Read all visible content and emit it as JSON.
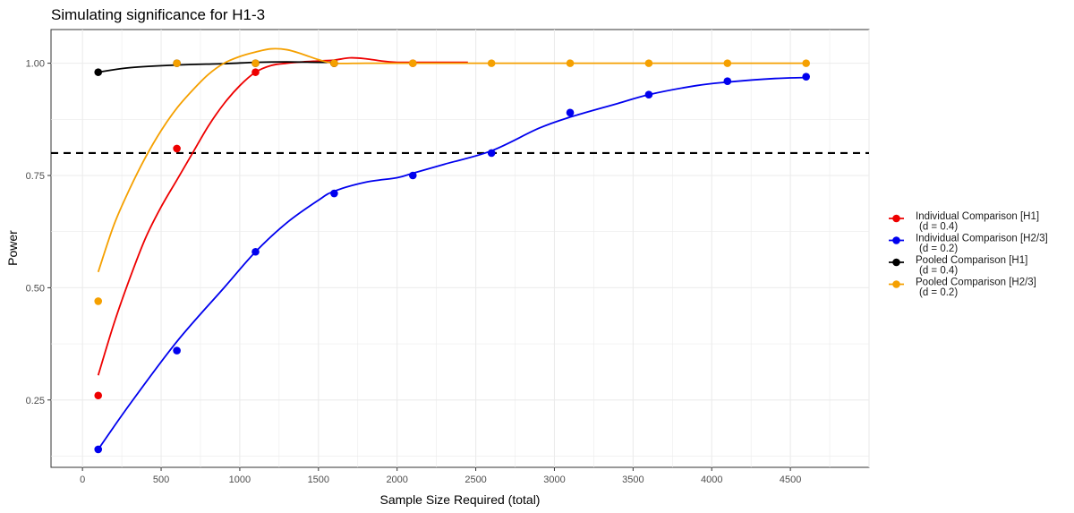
{
  "chart_data": {
    "type": "line",
    "title": "Simulating significance for H1-3",
    "xlabel": "Sample Size Required (total)",
    "ylabel": "Power",
    "xlim": [
      -200,
      5000
    ],
    "ylim": [
      0.1,
      1.075
    ],
    "x_ticks": [
      0,
      500,
      1000,
      1500,
      2000,
      2500,
      3000,
      3500,
      4000,
      4500
    ],
    "y_ticks": [
      0.25,
      0.5,
      0.75,
      1.0
    ],
    "y_tick_labels": [
      "0.25",
      "0.50",
      "0.75",
      "1.00"
    ],
    "grid": true,
    "legend_position": "right",
    "reference_line": {
      "y": 0.8,
      "style": "dashed",
      "color": "#000000"
    },
    "x": [
      100,
      600,
      1100,
      1600,
      2100,
      2600,
      3100,
      3600,
      4100,
      4600
    ],
    "series": [
      {
        "name": "Individual Comparison [H1]\n(d = 0.4)",
        "color": "#ee0000",
        "values": [
          0.26,
          0.81,
          0.98,
          1.0,
          1.0,
          null,
          null,
          null,
          null,
          null
        ],
        "smooth_x": [
          100,
          200,
          300,
          400,
          500,
          600,
          700,
          800,
          900,
          1000,
          1100,
          1200,
          1300,
          1400,
          1500,
          1600,
          1700,
          1800,
          1900,
          2000,
          2100,
          2200,
          2300,
          2400,
          2450
        ],
        "smooth_y": [
          0.305,
          0.42,
          0.52,
          0.61,
          0.68,
          0.74,
          0.8,
          0.86,
          0.91,
          0.95,
          0.98,
          0.995,
          1.0,
          1.003,
          1.005,
          1.007,
          1.012,
          1.01,
          1.005,
          1.002,
          1.002,
          1.002,
          1.002,
          1.002,
          1.002
        ]
      },
      {
        "name": "Individual Comparison [H2/3]\n(d = 0.2)",
        "color": "#0000ee",
        "values": [
          0.14,
          0.36,
          0.58,
          0.71,
          0.75,
          0.8,
          0.89,
          0.93,
          0.96,
          0.97
        ],
        "smooth_x": [
          100,
          300,
          600,
          900,
          1100,
          1300,
          1500,
          1600,
          1800,
          2000,
          2100,
          2300,
          2600,
          2900,
          3100,
          3400,
          3600,
          3900,
          4100,
          4400,
          4600
        ],
        "smooth_y": [
          0.14,
          0.24,
          0.38,
          0.5,
          0.58,
          0.645,
          0.695,
          0.715,
          0.735,
          0.745,
          0.755,
          0.775,
          0.805,
          0.855,
          0.88,
          0.91,
          0.93,
          0.95,
          0.958,
          0.966,
          0.968
        ]
      },
      {
        "name": "Pooled Comparison [H1]\n(d = 0.4)",
        "color": "#000000",
        "values": [
          0.98,
          1.0,
          1.0,
          1.0,
          null,
          null,
          null,
          null,
          null,
          null
        ],
        "smooth_x": [
          100,
          300,
          600,
          900,
          1100,
          1300,
          1500,
          1600
        ],
        "smooth_y": [
          0.98,
          0.99,
          0.996,
          0.999,
          1.002,
          1.003,
          1.002,
          1.002
        ]
      },
      {
        "name": "Pooled Comparison [H2/3]\n(d = 0.2)",
        "color": "#f5a000",
        "values": [
          0.47,
          1.0,
          1.0,
          1.0,
          1.0,
          1.0,
          1.0,
          1.0,
          1.0,
          1.0
        ],
        "smooth_x": [
          100,
          200,
          300,
          400,
          500,
          600,
          700,
          800,
          900,
          1000,
          1100,
          1200,
          1300,
          1400,
          1500,
          1600,
          1800,
          2100,
          2600,
          3100,
          3600,
          4100,
          4600
        ],
        "smooth_y": [
          0.535,
          0.64,
          0.72,
          0.79,
          0.85,
          0.9,
          0.94,
          0.975,
          1.0,
          1.015,
          1.025,
          1.032,
          1.03,
          1.02,
          1.008,
          1.0,
          1.0,
          1.0,
          1.0,
          1.0,
          1.0,
          1.0,
          1.0
        ]
      }
    ]
  }
}
